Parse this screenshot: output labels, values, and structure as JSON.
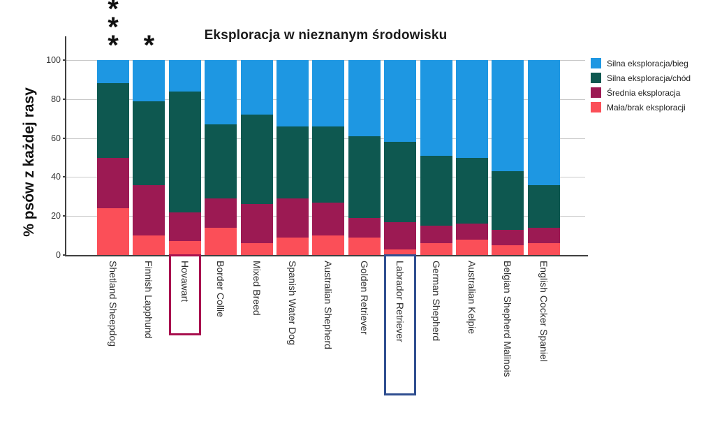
{
  "title": "Eksploracja w nieznanym środowisku",
  "y_axis": {
    "label": "% psów z każdej rasy",
    "ticks": [
      0,
      20,
      40,
      60,
      80,
      100
    ]
  },
  "legend": [
    {
      "label": "Silna eksploracja/bieg",
      "color": "#1e97e2"
    },
    {
      "label": "Silna eksploracja/chód",
      "color": "#0e5850"
    },
    {
      "label": "Średnia eksploracja",
      "color": "#9c1a53"
    },
    {
      "label": "Mała/brak eksploracji",
      "color": "#fb4f58"
    }
  ],
  "chart_data": {
    "type": "bar",
    "stacked": true,
    "title": "Eksploracja w nieznanym środowisku",
    "xlabel": "",
    "ylabel": "% psów z każdej rasy",
    "ylim": [
      0,
      100
    ],
    "grid": true,
    "legend_position": "right",
    "categories": [
      "Shetland Sheepdog",
      "Finnish Lapphund",
      "Hovawart",
      "Border Collie",
      "Mixed Breed",
      "Spanish Water Dog",
      "Australian Shepherd",
      "Golden Retriever",
      "Labrador Retriever",
      "German Shepherd",
      "Australian Kelpie",
      "Belgian Shepherd Malinois",
      "English Cocker Spaniel"
    ],
    "series": [
      {
        "name": "Mała/brak eksploracji",
        "color": "#fb4f58",
        "values": [
          24,
          10,
          7,
          14,
          6,
          9,
          10,
          9,
          3,
          6,
          8,
          5,
          6
        ]
      },
      {
        "name": "Średnia eksploracja",
        "color": "#9c1a53",
        "values": [
          26,
          26,
          15,
          15,
          20,
          20,
          17,
          10,
          14,
          9,
          8,
          8,
          8
        ]
      },
      {
        "name": "Silna eksploracja/chód",
        "color": "#0e5850",
        "values": [
          38,
          43,
          62,
          38,
          46,
          37,
          39,
          42,
          41,
          36,
          34,
          30,
          22
        ]
      },
      {
        "name": "Silna eksploracja/bieg",
        "color": "#1e97e2",
        "values": [
          12,
          21,
          16,
          33,
          28,
          34,
          34,
          39,
          42,
          49,
          50,
          57,
          64
        ]
      }
    ],
    "annotations": [
      {
        "category": "Shetland Sheepdog",
        "text": "***"
      },
      {
        "category": "Finnish Lapphund",
        "text": "*"
      }
    ],
    "highlighted_categories": [
      {
        "category": "Hovawart",
        "box_color": "#a8104e"
      },
      {
        "category": "Labrador Retriever",
        "box_color": "#2f4e90"
      }
    ]
  }
}
